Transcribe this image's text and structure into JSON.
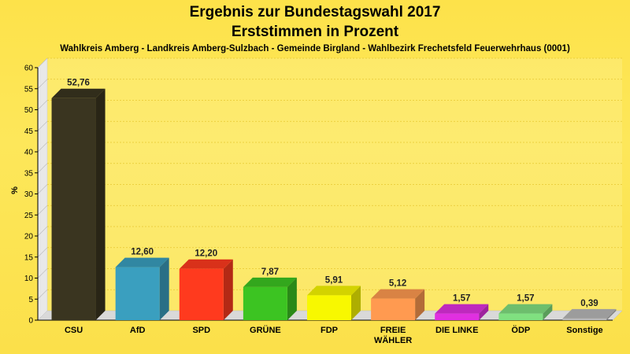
{
  "chart_data": {
    "type": "bar",
    "title": "Ergebnis zur Bundestagswahl 2017",
    "title2": "Erststimmen in Prozent",
    "subtitle": "Wahlkreis Amberg - Landkreis Amberg-Sulzbach - Gemeinde Birgland - Wahlbezirk Frechetsfeld Feuerwehrhaus (0001)",
    "ylabel": "%",
    "xlabel": "",
    "ylim": [
      0,
      60
    ],
    "yticks": [
      "0",
      "5",
      "10",
      "15",
      "20",
      "25",
      "30",
      "35",
      "40",
      "45",
      "50",
      "55",
      "60"
    ],
    "grid": true,
    "legend": "none",
    "categories": [
      "CSU",
      "AfD",
      "SPD",
      "GRÜNE",
      "FDP",
      "FREIE WÄHLER",
      "DIE LINKE",
      "ÖDP",
      "Sonstige"
    ],
    "values": [
      52.76,
      12.6,
      12.2,
      7.87,
      5.91,
      5.12,
      1.57,
      1.57,
      0.39
    ],
    "value_labels": [
      "52,76",
      "12,60",
      "12,20",
      "7,87",
      "5,91",
      "5,12",
      "1,57",
      "1,57",
      "0,39"
    ],
    "colors": [
      "#3a3520",
      "#3a9fbf",
      "#ff3a1e",
      "#3cc422",
      "#f8f800",
      "#ff9a50",
      "#e030e0",
      "#80e080",
      "#b8b8b8"
    ]
  }
}
